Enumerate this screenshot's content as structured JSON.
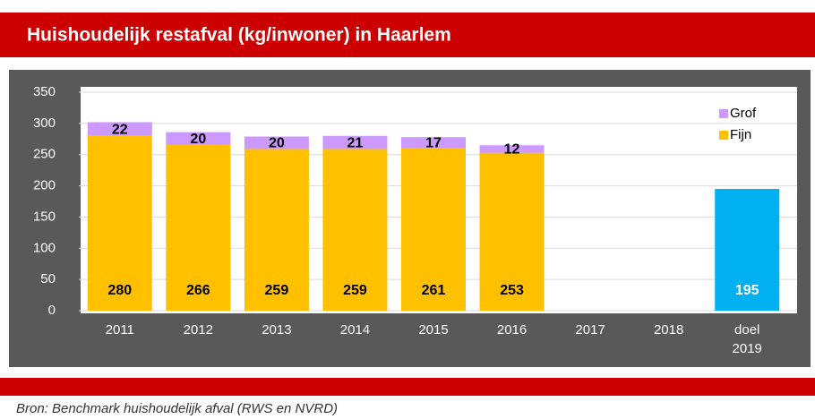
{
  "chart_data": {
    "type": "stacked_bar",
    "title": "Huishoudelijk restafval (kg/inwoner) in Haarlem",
    "categories": [
      "2011",
      "2012",
      "2013",
      "2014",
      "2015",
      "2016",
      "2017",
      "2018",
      "doel 2019"
    ],
    "series": [
      {
        "name": "Fijn",
        "color": "#ffc000",
        "values": [
          280,
          266,
          259,
          259,
          261,
          253,
          null,
          null,
          null
        ]
      },
      {
        "name": "Grof",
        "color": "#cc99ff",
        "values": [
          22,
          20,
          20,
          21,
          17,
          12,
          null,
          null,
          null
        ]
      }
    ],
    "target": {
      "color": "#00b0f0",
      "values": [
        null,
        null,
        null,
        null,
        null,
        null,
        null,
        null,
        195
      ]
    },
    "ylim": [
      0,
      350
    ],
    "yticks": [
      0,
      50,
      100,
      150,
      200,
      250,
      300,
      350
    ],
    "grid": true,
    "legend": "top-right",
    "source": "Bron: Benchmark huishoudelijk afval (RWS en NVRD)"
  }
}
